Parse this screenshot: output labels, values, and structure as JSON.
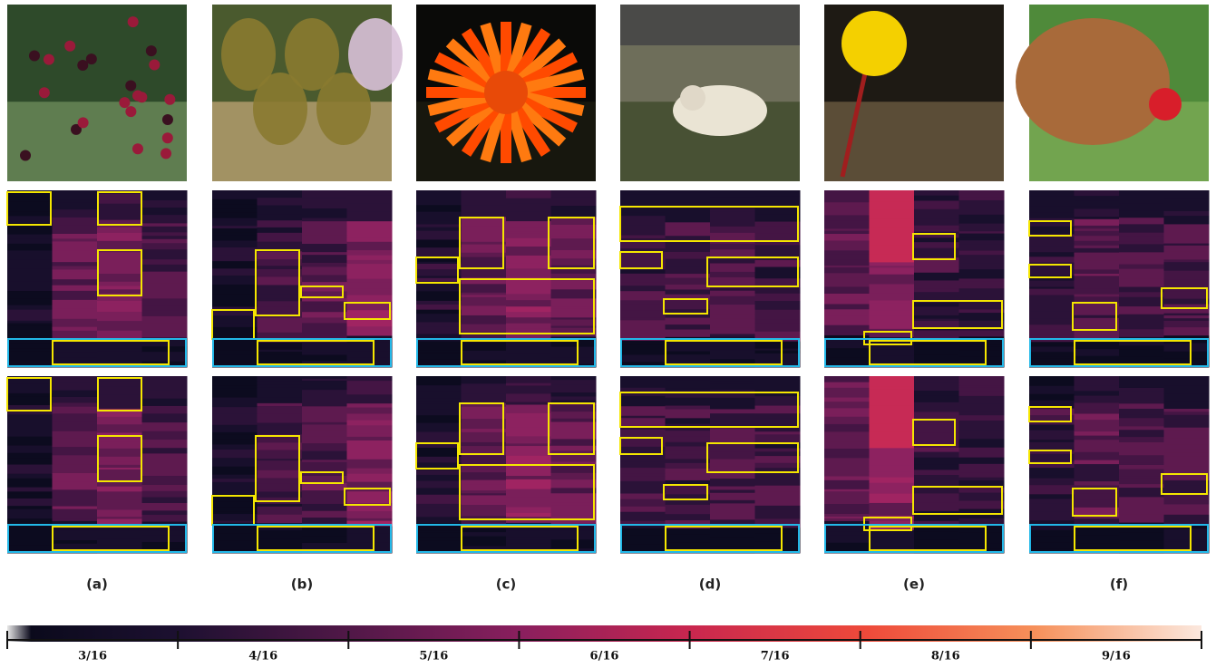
{
  "figure": {
    "panel_labels": [
      "(a)",
      "(b)",
      "(c)",
      "(d)",
      "(e)",
      "(f)"
    ],
    "colorbar": {
      "labels": [
        "3/16",
        "4/16",
        "5/16",
        "6/16",
        "7/16",
        "8/16",
        "9/16"
      ]
    }
  }
}
